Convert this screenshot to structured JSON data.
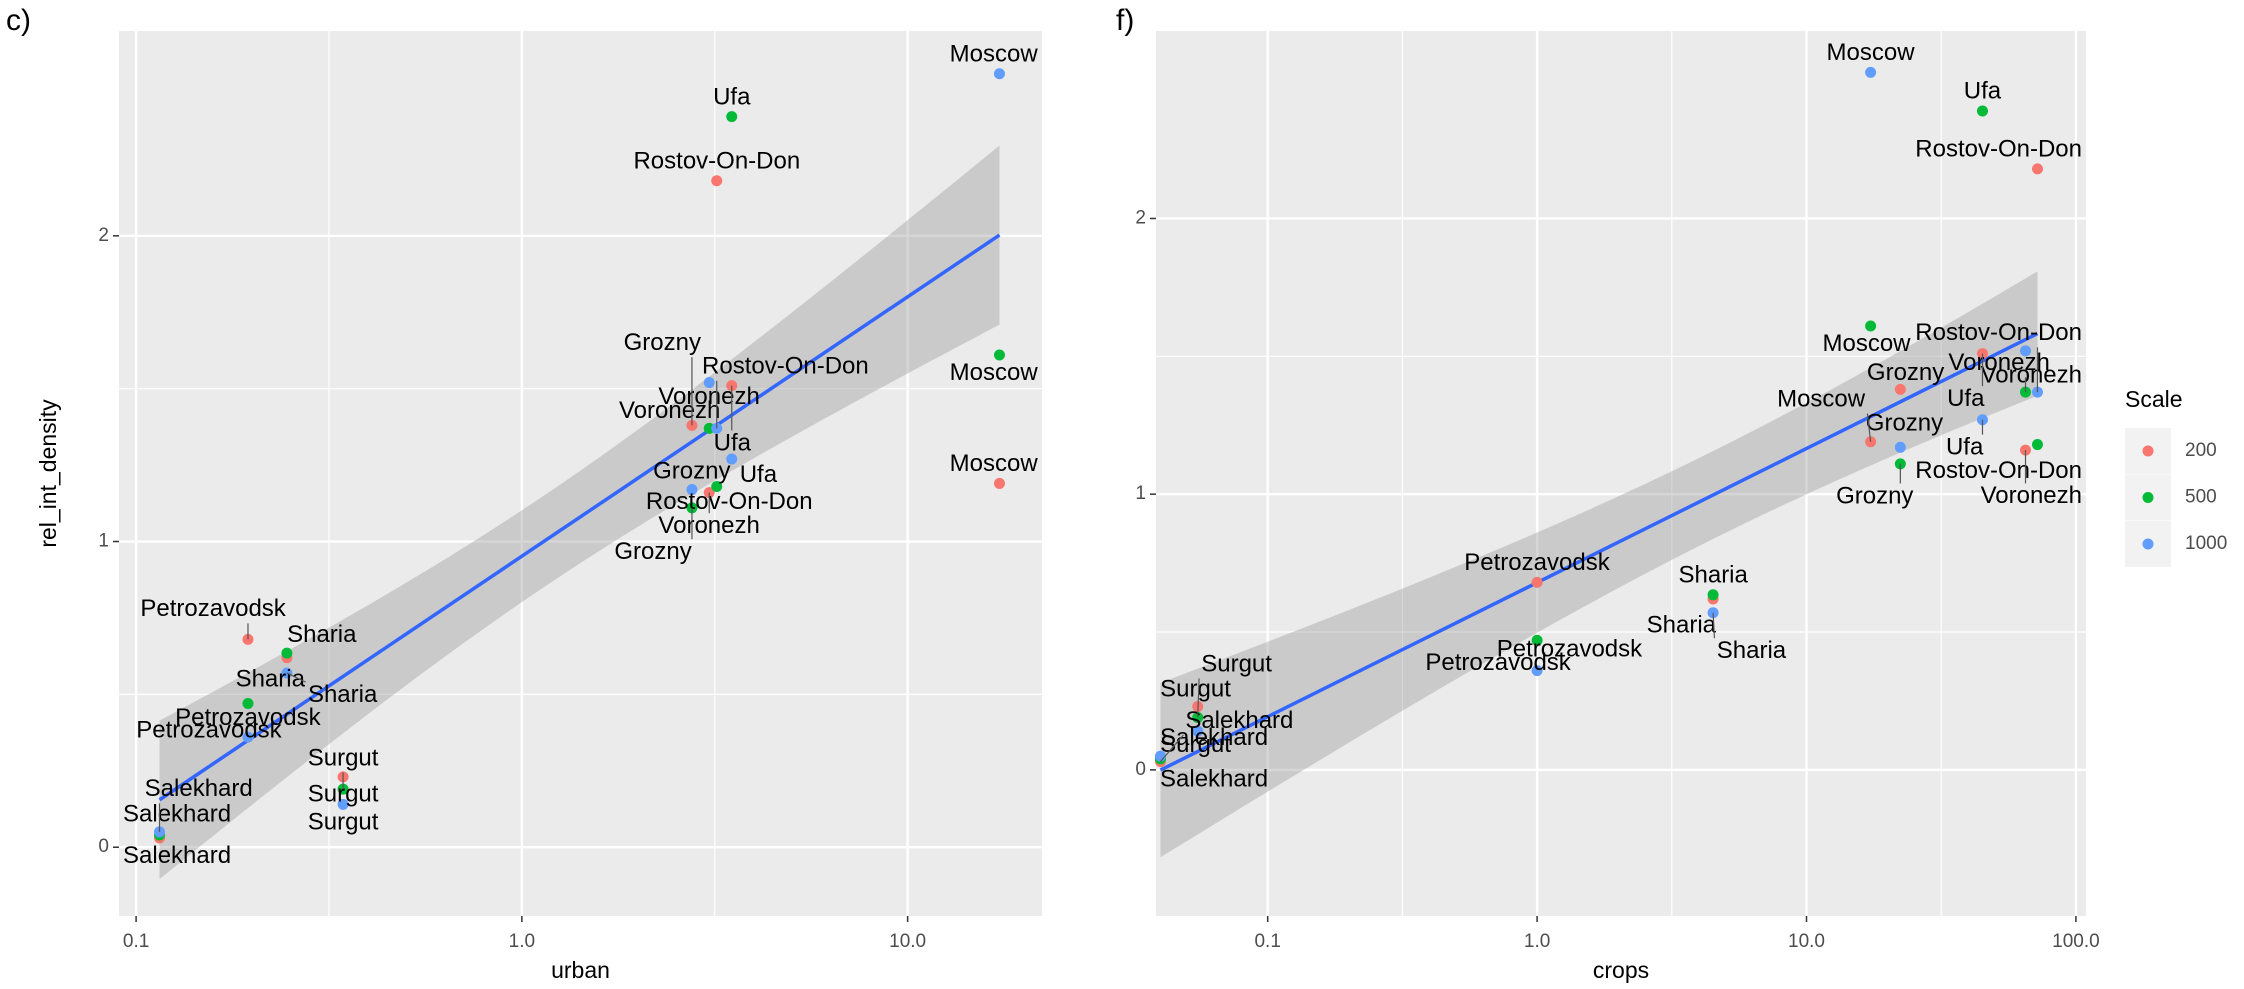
{
  "chart_data": [
    {
      "type": "scatter",
      "tag": "c)",
      "x_label": "urban",
      "y_label": "rel_int_density",
      "xscale": "log",
      "grid": true,
      "xlim": [
        0.0903,
        22.3
      ],
      "ylim": [
        -0.225,
        2.67
      ],
      "xticks": [
        0.1,
        {
          "value": 1,
          "label": "1.0"
        },
        {
          "value": 10,
          "label": "10.0"
        }
      ],
      "yticks": [
        0,
        1,
        2
      ],
      "fit": "lm",
      "fit_color": "#3366FF",
      "series": [
        {
          "name": "200",
          "color": "#F8766D",
          "labels": [
            "Moscow",
            "Ufa",
            "Rostov-On-Don",
            "Voronezh",
            "Grozny",
            "Sharia",
            "Petrozavodsk",
            "Surgut",
            "Salekhard"
          ],
          "x": [
            17.3,
            3.5,
            3.2,
            3.06,
            2.76,
            0.246,
            0.195,
            0.344,
            0.115
          ],
          "values": [
            1.19,
            1.51,
            2.18,
            1.16,
            1.38,
            0.62,
            0.68,
            0.23,
            0.03
          ]
        },
        {
          "name": "500",
          "color": "#00BA38",
          "labels": [
            "Moscow",
            "Ufa",
            "Rostov-On-Don",
            "Voronezh",
            "Grozny",
            "Sharia",
            "Petrozavodsk",
            "Surgut",
            "Salekhard"
          ],
          "x": [
            17.3,
            3.5,
            3.2,
            3.06,
            2.76,
            0.246,
            0.195,
            0.344,
            0.115
          ],
          "values": [
            1.61,
            2.39,
            1.18,
            1.37,
            1.11,
            0.635,
            0.47,
            0.19,
            0.04
          ]
        },
        {
          "name": "1000",
          "color": "#619CFF",
          "labels": [
            "Moscow",
            "Ufa",
            "Rostov-On-Don",
            "Voronezh",
            "Grozny",
            "Sharia",
            "Petrozavodsk",
            "Surgut",
            "Salekhard"
          ],
          "x": [
            17.3,
            3.5,
            3.2,
            3.06,
            2.76,
            0.246,
            0.195,
            0.344,
            0.115
          ],
          "values": [
            2.53,
            1.27,
            1.37,
            1.52,
            1.17,
            0.57,
            0.36,
            0.14,
            0.05
          ]
        }
      ]
    },
    {
      "type": "scatter",
      "tag": "f)",
      "x_label": "crops",
      "xscale": "log",
      "grid": true,
      "xlim": [
        0.0385,
        109
      ],
      "ylim": [
        -0.53,
        2.68
      ],
      "xticks": [
        0.1,
        {
          "value": 1,
          "label": "1.0"
        },
        {
          "value": 10,
          "label": "10.0"
        },
        {
          "value": 100,
          "label": "100.0"
        }
      ],
      "yticks": [
        0,
        1,
        2
      ],
      "fit": "lm",
      "fit_color": "#3366FF",
      "legend_title": "Scale",
      "legend": "right",
      "series": [
        {
          "name": "200",
          "color": "#F8766D",
          "labels": [
            "Moscow",
            "Ufa",
            "Rostov-On-Don",
            "Voronezh",
            "Grozny",
            "Sharia",
            "Petrozavodsk",
            "Surgut",
            "Salekhard"
          ],
          "x": [
            17.3,
            45,
            72,
            65,
            22.3,
            4.5,
            1,
            0.055,
            0.04
          ],
          "values": [
            1.19,
            1.51,
            2.18,
            1.16,
            1.38,
            0.62,
            0.68,
            0.23,
            0.03
          ]
        },
        {
          "name": "500",
          "color": "#00BA38",
          "labels": [
            "Moscow",
            "Ufa",
            "Rostov-On-Don",
            "Voronezh",
            "Grozny",
            "Sharia",
            "Petrozavodsk",
            "Surgut",
            "Salekhard"
          ],
          "x": [
            17.3,
            45,
            72,
            65,
            22.3,
            4.5,
            1,
            0.055,
            0.04
          ],
          "values": [
            1.61,
            2.39,
            1.18,
            1.37,
            1.11,
            0.635,
            0.47,
            0.19,
            0.04
          ]
        },
        {
          "name": "1000",
          "color": "#619CFF",
          "labels": [
            "Moscow",
            "Ufa",
            "Rostov-On-Don",
            "Voronezh",
            "Grozny",
            "Sharia",
            "Petrozavodsk",
            "Surgut",
            "Salekhard"
          ],
          "x": [
            17.3,
            45,
            72,
            65,
            22.3,
            4.5,
            1,
            0.055,
            0.04
          ],
          "values": [
            2.53,
            1.27,
            1.37,
            1.52,
            1.17,
            0.57,
            0.36,
            0.14,
            0.05
          ]
        }
      ]
    }
  ]
}
